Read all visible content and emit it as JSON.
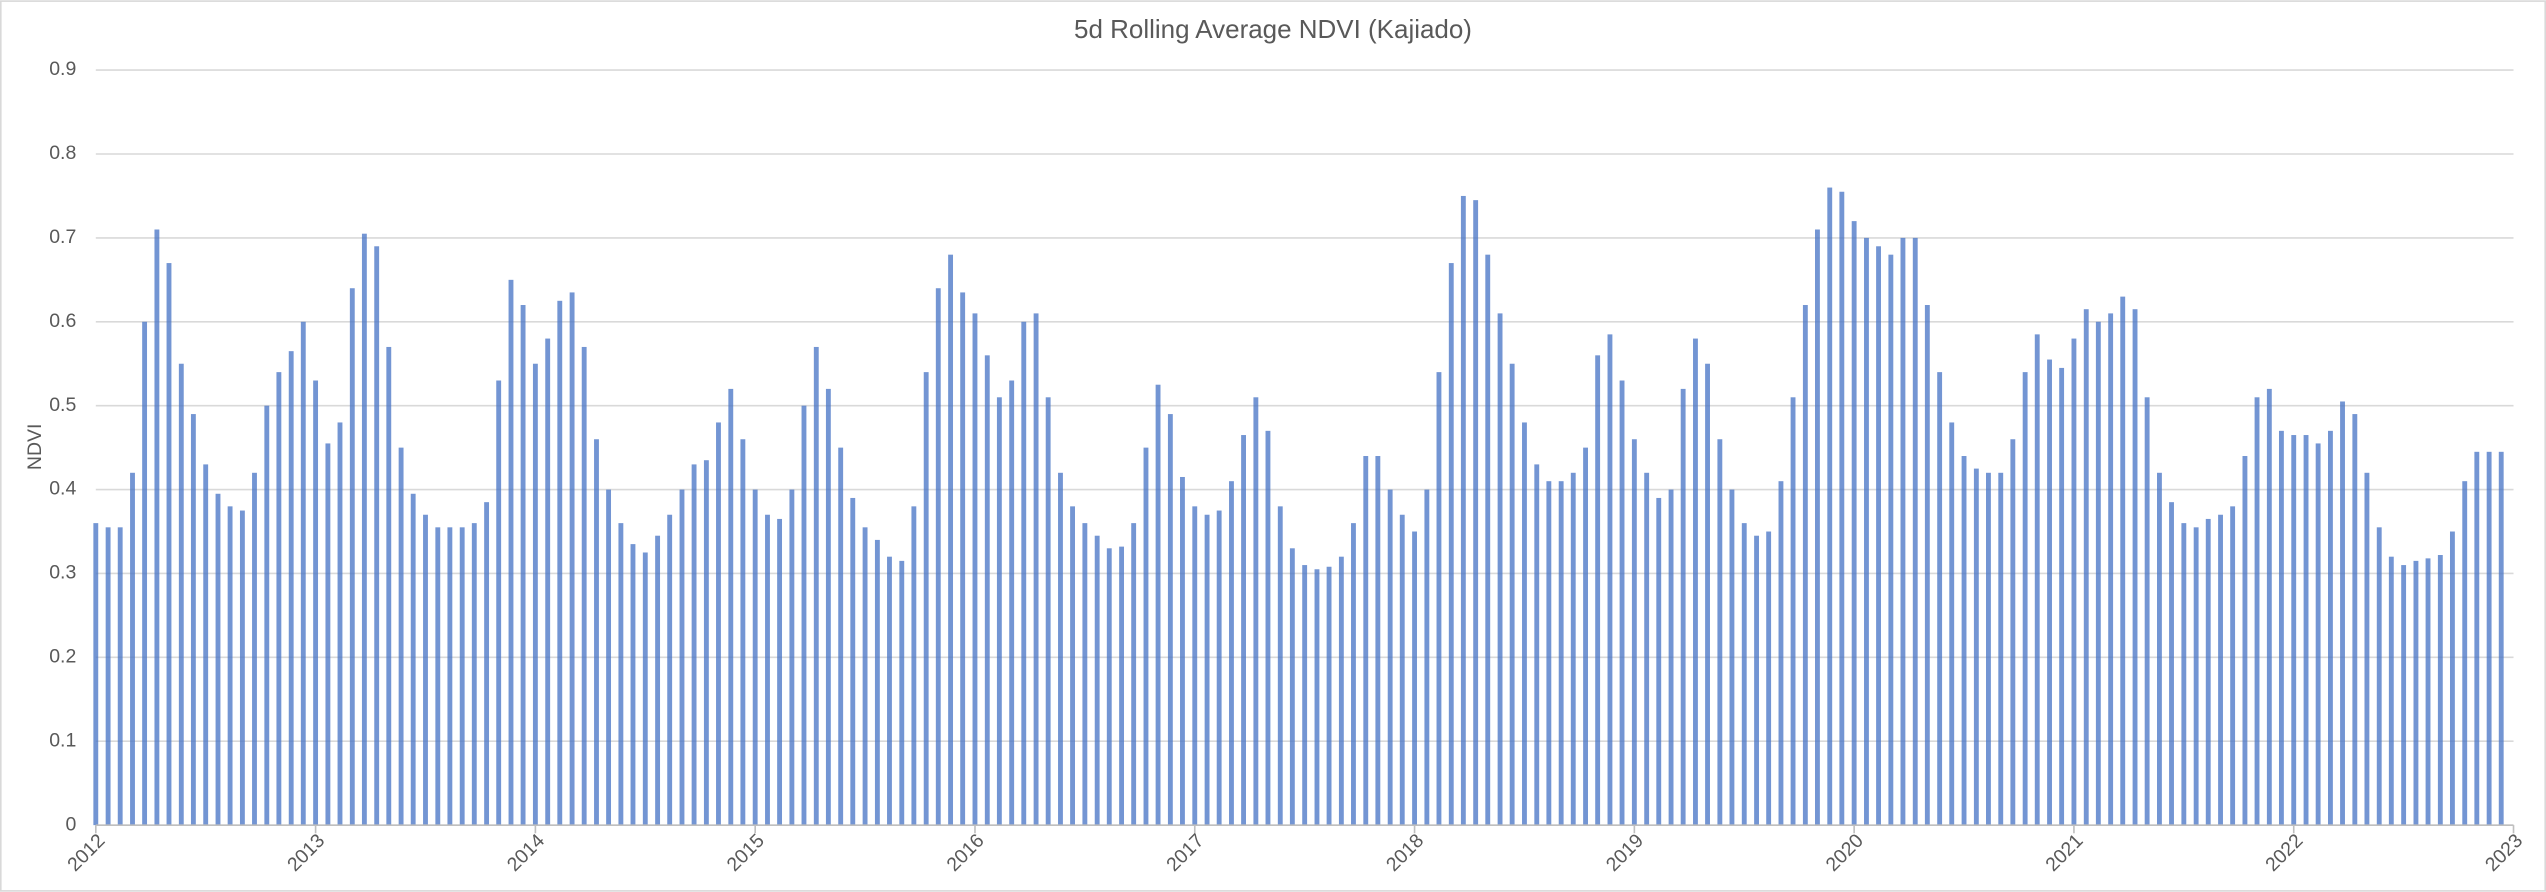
{
  "chart_data": {
    "type": "bar",
    "title": "5d Rolling Average NDVI (Kajiado)",
    "y_label": "NDVI",
    "color": "#4472c4",
    "grid": true,
    "xlim": [
      2012,
      2023
    ],
    "xticks": [
      2012,
      2013,
      2014,
      2015,
      2016,
      2017,
      2018,
      2019,
      2020,
      2021,
      2022,
      2023
    ],
    "ylim": [
      0,
      0.9
    ],
    "yticks": [
      0,
      0.1,
      0.2,
      0.3,
      0.4,
      0.5,
      0.6,
      0.7,
      0.8,
      0.9
    ],
    "x": [
      2012,
      2012.056,
      2012.111,
      2012.167,
      2012.222,
      2012.278,
      2012.333,
      2012.389,
      2012.444,
      2012.5,
      2012.556,
      2012.611,
      2012.667,
      2012.722,
      2012.778,
      2012.833,
      2012.889,
      2012.944,
      2013,
      2013.056,
      2013.111,
      2013.167,
      2013.222,
      2013.278,
      2013.333,
      2013.389,
      2013.444,
      2013.5,
      2013.556,
      2013.611,
      2013.667,
      2013.722,
      2013.778,
      2013.833,
      2013.889,
      2013.944,
      2014,
      2014.056,
      2014.111,
      2014.167,
      2014.222,
      2014.278,
      2014.333,
      2014.389,
      2014.444,
      2014.5,
      2014.556,
      2014.611,
      2014.667,
      2014.722,
      2014.778,
      2014.833,
      2014.889,
      2014.944,
      2015,
      2015.056,
      2015.111,
      2015.167,
      2015.222,
      2015.278,
      2015.333,
      2015.389,
      2015.444,
      2015.5,
      2015.556,
      2015.611,
      2015.667,
      2015.722,
      2015.778,
      2015.833,
      2015.889,
      2015.944,
      2016,
      2016.056,
      2016.111,
      2016.167,
      2016.222,
      2016.278,
      2016.333,
      2016.389,
      2016.444,
      2016.5,
      2016.556,
      2016.611,
      2016.667,
      2016.722,
      2016.778,
      2016.833,
      2016.889,
      2016.944,
      2017,
      2017.056,
      2017.111,
      2017.167,
      2017.222,
      2017.278,
      2017.333,
      2017.389,
      2017.444,
      2017.5,
      2017.556,
      2017.611,
      2017.667,
      2017.722,
      2017.778,
      2017.833,
      2017.889,
      2017.944,
      2018,
      2018.056,
      2018.111,
      2018.167,
      2018.222,
      2018.278,
      2018.333,
      2018.389,
      2018.444,
      2018.5,
      2018.556,
      2018.611,
      2018.667,
      2018.722,
      2018.778,
      2018.833,
      2018.889,
      2018.944,
      2019,
      2019.056,
      2019.111,
      2019.167,
      2019.222,
      2019.278,
      2019.333,
      2019.389,
      2019.444,
      2019.5,
      2019.556,
      2019.611,
      2019.667,
      2019.722,
      2019.778,
      2019.833,
      2019.889,
      2019.944,
      2020,
      2020.056,
      2020.111,
      2020.167,
      2020.222,
      2020.278,
      2020.333,
      2020.389,
      2020.444,
      2020.5,
      2020.556,
      2020.611,
      2020.667,
      2020.722,
      2020.778,
      2020.833,
      2020.889,
      2020.944,
      2021,
      2021.056,
      2021.111,
      2021.167,
      2021.222,
      2021.278,
      2021.333,
      2021.389,
      2021.444,
      2021.5,
      2021.556,
      2021.611,
      2021.667,
      2021.722,
      2021.778,
      2021.833,
      2021.889,
      2021.944,
      2022,
      2022.056,
      2022.111,
      2022.167,
      2022.222,
      2022.278,
      2022.333,
      2022.389,
      2022.444,
      2022.5,
      2022.556,
      2022.611,
      2022.667,
      2022.722,
      2022.778,
      2022.833,
      2022.889,
      2022.944
    ],
    "values": [
      0.36,
      0.355,
      0.355,
      0.42,
      0.6,
      0.71,
      0.67,
      0.55,
      0.49,
      0.43,
      0.395,
      0.38,
      0.375,
      0.42,
      0.5,
      0.54,
      0.565,
      0.6,
      0.53,
      0.455,
      0.48,
      0.64,
      0.705,
      0.69,
      0.57,
      0.45,
      0.395,
      0.37,
      0.355,
      0.355,
      0.355,
      0.36,
      0.385,
      0.53,
      0.65,
      0.62,
      0.55,
      0.58,
      0.625,
      0.635,
      0.57,
      0.46,
      0.4,
      0.36,
      0.335,
      0.325,
      0.345,
      0.37,
      0.4,
      0.43,
      0.435,
      0.48,
      0.52,
      0.46,
      0.4,
      0.37,
      0.365,
      0.4,
      0.5,
      0.57,
      0.52,
      0.45,
      0.39,
      0.355,
      0.34,
      0.32,
      0.315,
      0.38,
      0.54,
      0.64,
      0.68,
      0.635,
      0.61,
      0.56,
      0.51,
      0.53,
      0.6,
      0.61,
      0.51,
      0.42,
      0.38,
      0.36,
      0.345,
      0.33,
      0.332,
      0.36,
      0.45,
      0.525,
      0.49,
      0.415,
      0.38,
      0.37,
      0.375,
      0.41,
      0.465,
      0.51,
      0.47,
      0.38,
      0.33,
      0.31,
      0.305,
      0.308,
      0.32,
      0.36,
      0.44,
      0.44,
      0.4,
      0.37,
      0.35,
      0.4,
      0.54,
      0.67,
      0.75,
      0.745,
      0.68,
      0.61,
      0.55,
      0.48,
      0.43,
      0.41,
      0.41,
      0.42,
      0.45,
      0.56,
      0.585,
      0.53,
      0.46,
      0.42,
      0.39,
      0.4,
      0.52,
      0.58,
      0.55,
      0.46,
      0.4,
      0.36,
      0.345,
      0.35,
      0.41,
      0.51,
      0.62,
      0.71,
      0.76,
      0.755,
      0.72,
      0.7,
      0.69,
      0.68,
      0.7,
      0.7,
      0.62,
      0.54,
      0.48,
      0.44,
      0.425,
      0.42,
      0.42,
      0.46,
      0.54,
      0.585,
      0.555,
      0.545,
      0.58,
      0.615,
      0.6,
      0.61,
      0.63,
      0.615,
      0.51,
      0.42,
      0.385,
      0.36,
      0.355,
      0.365,
      0.37,
      0.38,
      0.44,
      0.51,
      0.52,
      0.47,
      0.465,
      0.465,
      0.455,
      0.47,
      0.505,
      0.49,
      0.42,
      0.355,
      0.32,
      0.31,
      0.315,
      0.318,
      0.322,
      0.35,
      0.41,
      0.445,
      0.445,
      0.445
    ]
  }
}
